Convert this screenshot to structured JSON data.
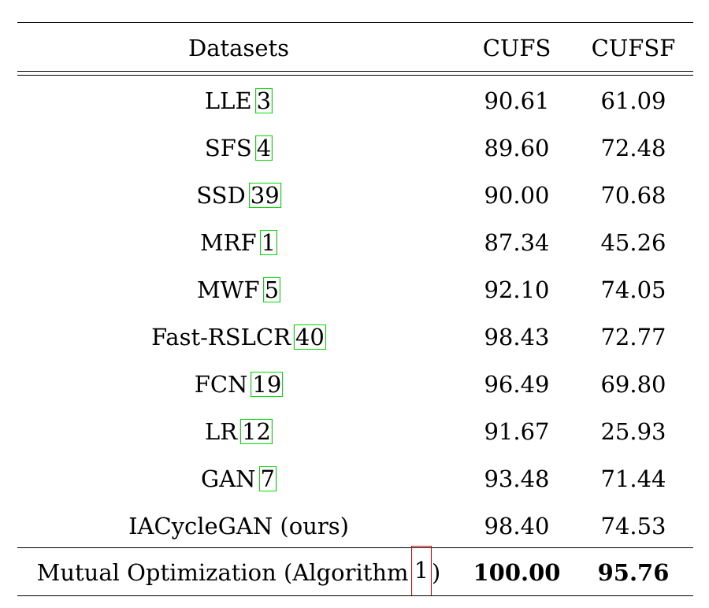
{
  "table": {
    "headers": [
      "Datasets",
      "CUFS",
      "CUFSF"
    ],
    "rows": [
      {
        "method": "LLE",
        "cite": "3",
        "cufs": "90.61",
        "cufsf": "61.09"
      },
      {
        "method": "SFS",
        "cite": "4",
        "cufs": "89.60",
        "cufsf": "72.48"
      },
      {
        "method": "SSD",
        "cite": "39",
        "cufs": "90.00",
        "cufsf": "70.68"
      },
      {
        "method": "MRF",
        "cite": "1",
        "cufs": "87.34",
        "cufsf": "45.26"
      },
      {
        "method": "MWF",
        "cite": "5",
        "cufs": "92.10",
        "cufsf": "74.05"
      },
      {
        "method": "Fast-RSLCR",
        "cite": "40",
        "cufs": "98.43",
        "cufsf": "72.77"
      },
      {
        "method": "FCN",
        "cite": "19",
        "cufs": "96.49",
        "cufsf": "69.80"
      },
      {
        "method": "LR",
        "cite": "12",
        "cufs": "91.67",
        "cufsf": "25.93"
      },
      {
        "method": "GAN",
        "cite": "7",
        "cufs": "93.48",
        "cufsf": "71.44"
      },
      {
        "method": "IACycleGAN (ours)",
        "cite": "",
        "cufs": "98.40",
        "cufsf": "74.53"
      }
    ],
    "final_row": {
      "method": "Mutual Optimization (Algorithm",
      "ref": "1",
      "close": ")",
      "cufs": "100.00",
      "cufsf": "95.76"
    },
    "colors": {
      "cite_border": "#00dd00",
      "ref_border": "#e00000"
    }
  }
}
